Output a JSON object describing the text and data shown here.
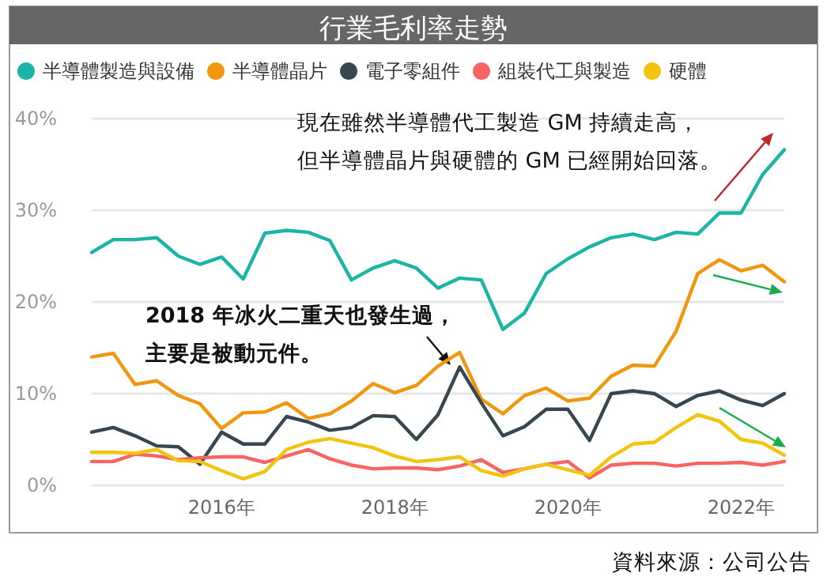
{
  "chart_data": {
    "type": "line",
    "title": "行業毛利率走勢",
    "categories": [
      null,
      null,
      null,
      null,
      null,
      null,
      "2016年",
      null,
      null,
      null,
      null,
      null,
      null,
      null,
      "2018年",
      null,
      null,
      null,
      null,
      null,
      null,
      null,
      "2020年",
      null,
      null,
      null,
      null,
      null,
      null,
      null,
      "2022年",
      null,
      null
    ],
    "series": [
      {
        "name": "半導體製造與設備",
        "color": "#1ab5a6",
        "values": [
          25.4,
          26.8,
          26.8,
          27.0,
          25.0,
          24.1,
          24.9,
          22.5,
          27.5,
          27.8,
          27.6,
          26.7,
          22.4,
          23.7,
          24.5,
          23.7,
          21.5,
          22.6,
          22.4,
          17.0,
          18.8,
          23.1,
          24.7,
          26.0,
          27.0,
          27.4,
          26.8,
          27.6,
          27.4,
          29.7,
          29.7,
          33.9,
          36.6
        ]
      },
      {
        "name": "半導體晶片",
        "color": "#f0960f",
        "values": [
          14.0,
          14.4,
          11.0,
          11.4,
          9.8,
          8.9,
          6.2,
          7.9,
          8.0,
          9.0,
          7.3,
          7.8,
          9.2,
          11.1,
          10.1,
          10.9,
          13.0,
          14.5,
          9.4,
          7.8,
          9.8,
          10.6,
          9.2,
          9.5,
          11.9,
          13.1,
          13.0,
          16.8,
          23.1,
          24.6,
          23.4,
          24.0,
          22.2
        ]
      },
      {
        "name": "電子零組件",
        "color": "#37474f",
        "values": [
          5.8,
          6.3,
          5.4,
          4.3,
          4.2,
          2.3,
          5.8,
          4.5,
          4.5,
          7.5,
          6.9,
          6.0,
          6.3,
          7.6,
          7.5,
          5.0,
          7.7,
          12.9,
          9.0,
          5.4,
          6.4,
          8.3,
          8.3,
          4.9,
          10.0,
          10.3,
          10.0,
          8.6,
          9.8,
          10.3,
          9.3,
          8.7,
          10.0
        ]
      },
      {
        "name": "組裝代工與製造",
        "color": "#f86464",
        "values": [
          2.6,
          2.6,
          3.4,
          3.2,
          2.8,
          3.0,
          3.1,
          3.1,
          2.5,
          3.2,
          3.9,
          2.9,
          2.2,
          1.8,
          1.9,
          1.9,
          1.7,
          2.1,
          2.8,
          1.4,
          1.8,
          2.3,
          2.6,
          0.8,
          2.2,
          2.4,
          2.4,
          2.1,
          2.4,
          2.4,
          2.5,
          2.2,
          2.6
        ]
      },
      {
        "name": "硬體",
        "color": "#f2c40f",
        "values": [
          3.6,
          3.6,
          3.5,
          3.9,
          2.7,
          2.6,
          1.6,
          0.7,
          1.5,
          3.9,
          4.7,
          5.1,
          4.6,
          4.1,
          3.2,
          2.6,
          2.8,
          3.1,
          1.6,
          1.0,
          1.8,
          2.3,
          1.7,
          1.1,
          3.1,
          4.5,
          4.7,
          6.3,
          7.7,
          7.0,
          5.0,
          4.6,
          3.3
        ]
      }
    ],
    "ylim": [
      0,
      40
    ],
    "yticks": [
      {
        "value": 0,
        "label": "0%"
      },
      {
        "value": 10,
        "label": "10%"
      },
      {
        "value": 20,
        "label": "20%"
      },
      {
        "value": 30,
        "label": "30%"
      },
      {
        "value": 40,
        "label": "40%"
      }
    ],
    "grid": "y",
    "legend": "top left",
    "marker": "none",
    "line_style": "solid",
    "annotations": [
      "現在雖然半導體代工製造 GM 持續走高，",
      "但半導體晶片與硬體的 GM 已經開始回落。",
      "2018 年冰火二重天也發生過，",
      "主要是被動元件。",
      "資料來源：公司公告"
    ]
  }
}
